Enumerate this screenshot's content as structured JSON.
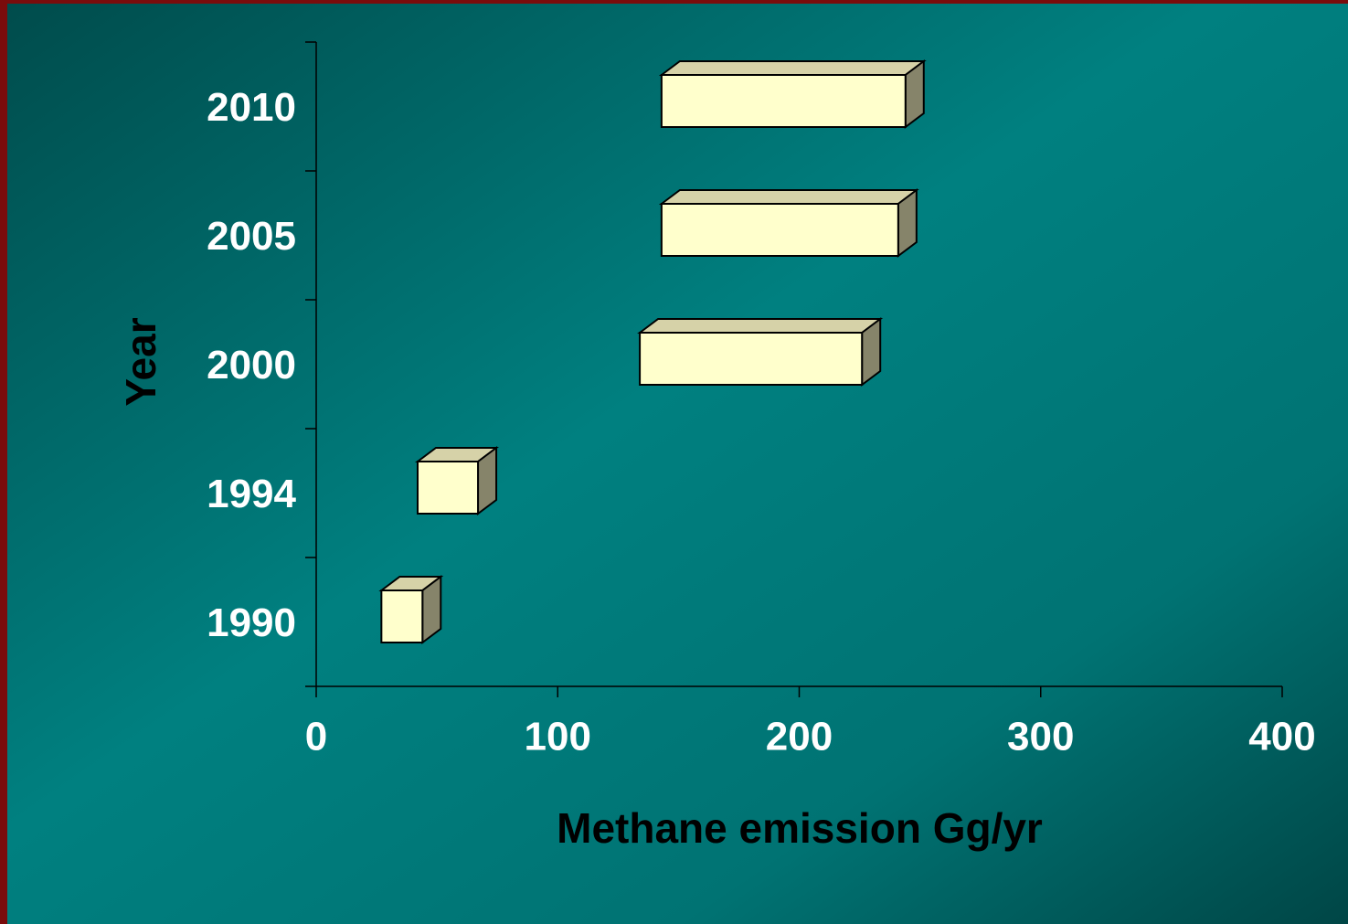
{
  "chart_data": {
    "type": "floating-bar",
    "orientation": "horizontal",
    "x_label": "Methane emission Gg/yr",
    "y_label": "Year",
    "categories": [
      "1990",
      "1994",
      "2000",
      "2005",
      "2010"
    ],
    "low": [
      27,
      42,
      134,
      143,
      143
    ],
    "high": [
      44,
      67,
      226,
      241,
      244
    ],
    "color": "#ffffcc",
    "xlim": [
      0,
      400
    ],
    "xticks": [
      0,
      100,
      200,
      300,
      400
    ]
  }
}
